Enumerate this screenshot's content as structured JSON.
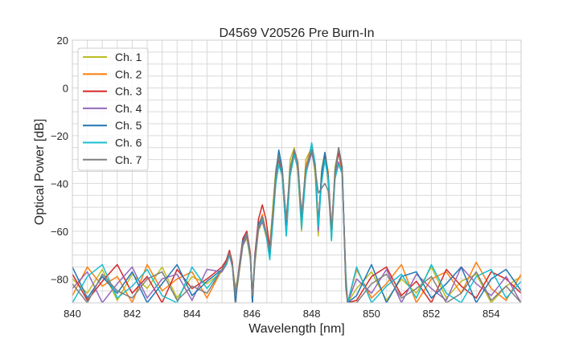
{
  "chart_data": {
    "type": "line",
    "title": "D4569 V20526 Pre Burn-In",
    "xlabel": "Wavelength [nm]",
    "ylabel": "Optical Power [dB]",
    "xlim": [
      840,
      855
    ],
    "ylim": [
      -90,
      20
    ],
    "xticks": [
      840,
      842,
      844,
      846,
      848,
      850,
      852,
      854
    ],
    "yticks": [
      20,
      0,
      -20,
      -40,
      -60,
      -80
    ],
    "xtick_labels": [
      "840",
      "842",
      "844",
      "846",
      "848",
      "850",
      "852",
      "854"
    ],
    "ytick_labels": [
      "20",
      "0",
      "−20",
      "−40",
      "−60",
      "−80"
    ],
    "grid": true,
    "minor_grid_step": {
      "x": 0.5,
      "y": 5
    },
    "legend_position": "upper-left",
    "x": [
      840,
      840.5,
      841,
      841.5,
      842,
      842.5,
      843,
      843.5,
      844,
      844.5,
      845.0,
      845.15,
      845.25,
      845.35,
      845.45,
      845.55,
      845.7,
      845.83,
      845.95,
      846.02,
      846.1,
      846.22,
      846.35,
      846.47,
      846.6,
      846.7,
      846.8,
      846.9,
      847.02,
      847.15,
      847.28,
      847.42,
      847.54,
      847.66,
      847.8,
      848.0,
      848.12,
      848.22,
      848.33,
      848.44,
      848.55,
      848.66,
      848.78,
      848.9,
      849.02,
      849.14,
      849.2,
      849.5,
      850,
      850.5,
      851,
      851.5,
      852,
      852.5,
      853,
      853.5,
      854,
      854.5,
      855
    ],
    "series": [
      {
        "name": "Ch. 1",
        "color": "#bcbd22",
        "values": [
          -80,
          -86,
          -76,
          -89,
          -78,
          -84,
          -75,
          -88,
          -79,
          -82,
          -77,
          -73,
          -70,
          -75,
          -88,
          -80,
          -66,
          -63,
          -72,
          -88,
          -74,
          -60,
          -56,
          -62,
          -66,
          -50,
          -34,
          -28,
          -38,
          -60,
          -30,
          -25,
          -36,
          -60,
          -30,
          -25,
          -37,
          -62,
          -34,
          -27,
          -40,
          -64,
          -33,
          -26,
          -37,
          -78,
          -90,
          -84,
          -77,
          -89,
          -80,
          -86,
          -75,
          -88,
          -81,
          -78,
          -90,
          -83,
          -79
        ]
      },
      {
        "name": "Ch. 2",
        "color": "#ff7f0e",
        "values": [
          -87,
          -75,
          -83,
          -79,
          -90,
          -74,
          -85,
          -80,
          -77,
          -88,
          -76,
          -74,
          -69,
          -74,
          -84,
          -78,
          -65,
          -61,
          -70,
          -90,
          -72,
          -58,
          -53,
          -60,
          -70,
          -54,
          -37,
          -30,
          -35,
          -57,
          -34,
          -26,
          -31,
          -55,
          -33,
          -24,
          -32,
          -57,
          -37,
          -27,
          -35,
          -60,
          -35,
          -25,
          -33,
          -84,
          -90,
          -76,
          -88,
          -82,
          -74,
          -90,
          -80,
          -77,
          -86,
          -73,
          -84,
          -89,
          -78
        ]
      },
      {
        "name": "Ch. 3",
        "color": "#d62728",
        "values": [
          -78,
          -89,
          -81,
          -74,
          -86,
          -79,
          -90,
          -76,
          -84,
          -80,
          -75,
          -72,
          -68,
          -73,
          -90,
          -77,
          -63,
          -60,
          -69,
          -90,
          -70,
          -55,
          -49,
          -55,
          -67,
          -53,
          -36,
          -30,
          -36,
          -56,
          -35,
          -27,
          -33,
          -56,
          -35,
          -26,
          -33,
          -57,
          -36,
          -28,
          -37,
          -60,
          -36,
          -27,
          -34,
          -80,
          -90,
          -89,
          -79,
          -75,
          -87,
          -81,
          -90,
          -76,
          -83,
          -88,
          -77,
          -80,
          -86
        ]
      },
      {
        "name": "Ch. 4",
        "color": "#9467bd",
        "values": [
          -84,
          -77,
          -90,
          -82,
          -75,
          -88,
          -80,
          -78,
          -89,
          -76,
          -77,
          -74,
          -70,
          -75,
          -88,
          -79,
          -66,
          -62,
          -71,
          -88,
          -73,
          -59,
          -56,
          -61,
          -71,
          -56,
          -39,
          -32,
          -37,
          -62,
          -36,
          -28,
          -34,
          -57,
          -36,
          -27,
          -34,
          -60,
          -38,
          -30,
          -38,
          -61,
          -37,
          -31,
          -36,
          -82,
          -90,
          -80,
          -86,
          -76,
          -90,
          -78,
          -84,
          -89,
          -75,
          -82,
          -87,
          -79,
          -90
        ]
      },
      {
        "name": "Ch. 5",
        "color": "#1f77b4",
        "values": [
          -75,
          -88,
          -79,
          -86,
          -77,
          -90,
          -82,
          -74,
          -87,
          -81,
          -76,
          -73,
          -70,
          -74,
          -90,
          -78,
          -64,
          -61,
          -70,
          -90,
          -71,
          -57,
          -54,
          -60,
          -70,
          -54,
          -36,
          -26,
          -34,
          -58,
          -34,
          -26,
          -33,
          -58,
          -35,
          -26,
          -34,
          -58,
          -36,
          -27,
          -37,
          -63,
          -35,
          -25,
          -33,
          -81,
          -90,
          -87,
          -74,
          -90,
          -79,
          -77,
          -88,
          -82,
          -75,
          -90,
          -80,
          -76,
          -85
        ]
      },
      {
        "name": "Ch. 6",
        "color": "#17becf",
        "values": [
          -90,
          -79,
          -74,
          -88,
          -83,
          -76,
          -87,
          -90,
          -75,
          -84,
          -76,
          -74,
          -70,
          -74,
          -86,
          -78,
          -65,
          -61,
          -71,
          -86,
          -72,
          -58,
          -55,
          -61,
          -72,
          -57,
          -40,
          -32,
          -37,
          -62,
          -37,
          -28,
          -33,
          -59,
          -37,
          -23,
          -32,
          -58,
          -40,
          -30,
          -38,
          -64,
          -38,
          -32,
          -36,
          -78,
          -90,
          -75,
          -90,
          -83,
          -78,
          -88,
          -74,
          -86,
          -90,
          -79,
          -76,
          -88,
          -81
        ]
      },
      {
        "name": "Ch. 7",
        "color": "#7f7f7f",
        "values": [
          -82,
          -90,
          -78,
          -85,
          -88,
          -80,
          -77,
          -89,
          -83,
          -86,
          -76,
          -73,
          -69,
          -74,
          -87,
          -78,
          -65,
          -61,
          -70,
          -87,
          -72,
          -58,
          -54,
          -60,
          -68,
          -53,
          -37,
          -29,
          -35,
          -55,
          -34,
          -26,
          -32,
          -53,
          -34,
          -26,
          -34,
          -44,
          -42,
          -40,
          -43,
          -59,
          -36,
          -25,
          -33,
          -80,
          -90,
          -90,
          -82,
          -78,
          -88,
          -84,
          -79,
          -90,
          -86,
          -77,
          -89,
          -83,
          -90
        ]
      }
    ]
  }
}
